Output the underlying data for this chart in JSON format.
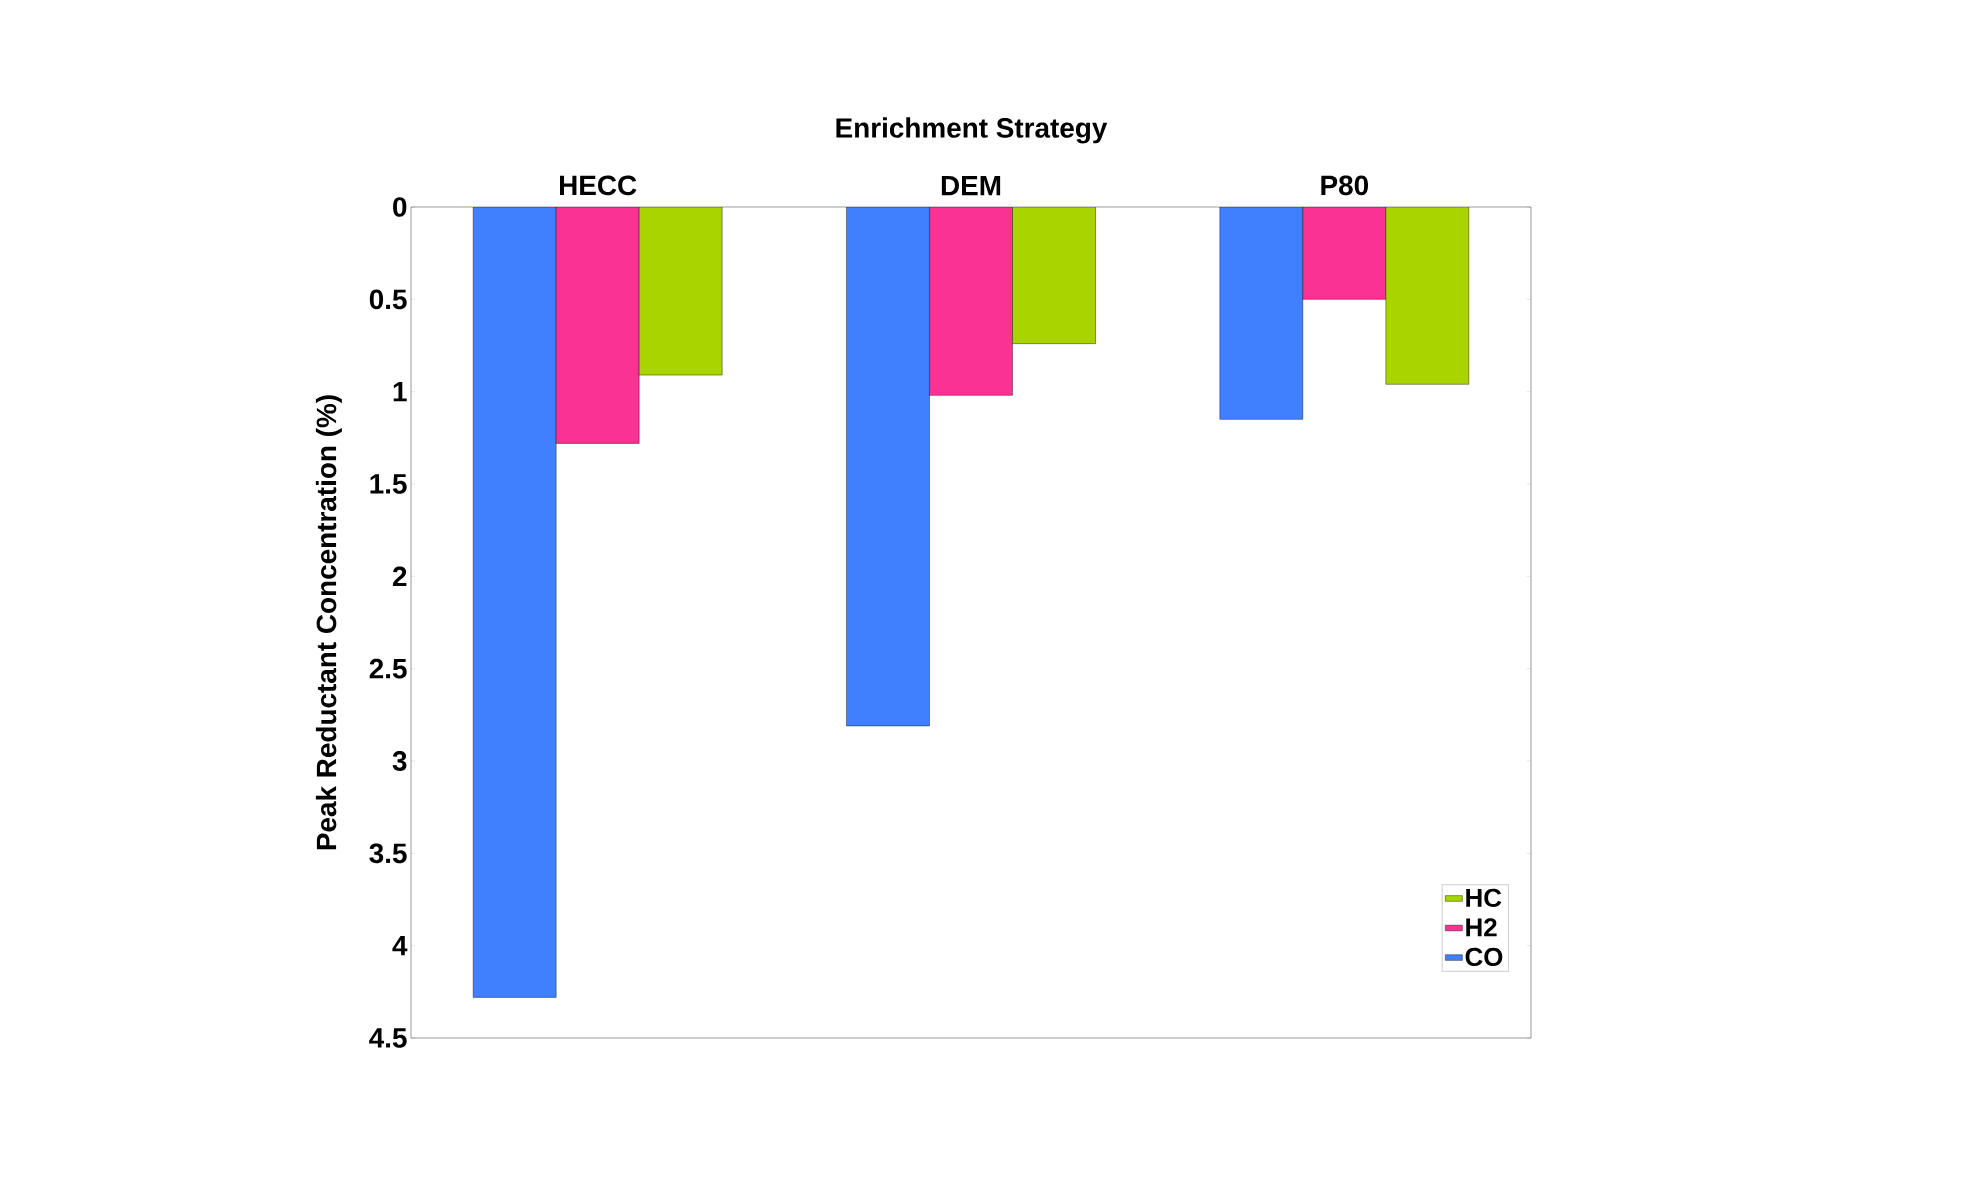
{
  "chart_data": {
    "type": "bar",
    "xlabel": "Enrichment Strategy",
    "ylabel": "Peak Reductant Concentration (%)",
    "categories": [
      "HECC",
      "DEM",
      "P80"
    ],
    "series": [
      {
        "name": "CO",
        "color": "#4080ff",
        "values": [
          4.28,
          2.81,
          1.15
        ]
      },
      {
        "name": "H2",
        "color": "#f93293",
        "values": [
          1.28,
          1.02,
          0.5
        ]
      },
      {
        "name": "HC",
        "color": "#a8d400",
        "values": [
          0.91,
          0.74,
          0.96
        ]
      }
    ],
    "ylim": [
      4.5,
      0
    ],
    "yticks": [
      0,
      0.5,
      1,
      1.5,
      2,
      2.5,
      3,
      3.5,
      4,
      4.5
    ],
    "legend": "bottom right",
    "grid": false
  }
}
